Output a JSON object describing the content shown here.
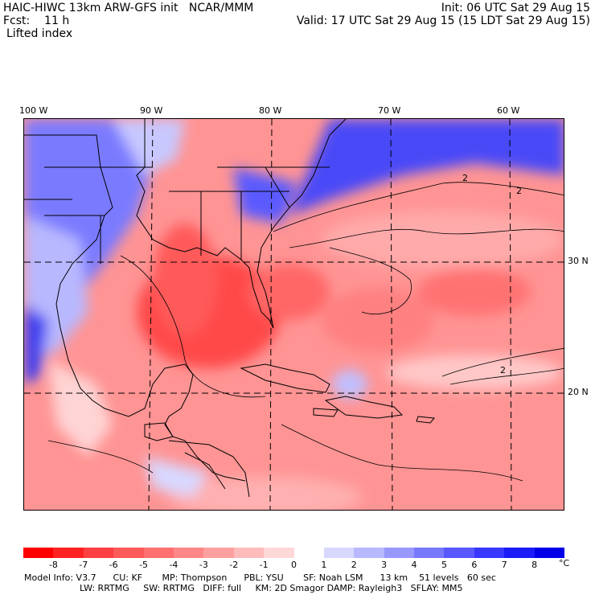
{
  "header": {
    "model_line": "HAIC-HIWC 13km ARW-GFS init   NCAR/MMM",
    "forecast_line": "Fcst:    11 h",
    "field_name": "Lifted index",
    "init_line": "Init: 06 UTC Sat 29 Aug 15",
    "valid_line": "Valid: 17 UTC Sat 29 Aug 15 (15 LDT Sat 29 Aug 15)"
  },
  "map": {
    "lon_labels": [
      "100 W",
      "90 W",
      "80 W",
      "70 W",
      "60 W"
    ],
    "lat_labels": [
      "30 N",
      "20 N"
    ],
    "contour_label": "2"
  },
  "colorbar": {
    "ticks": [
      "-8",
      "-7",
      "-6",
      "-5",
      "-4",
      "-3",
      "-2",
      "-1",
      "0",
      "1",
      "2",
      "3",
      "4",
      "5",
      "6",
      "7",
      "8"
    ],
    "unit": "°C",
    "colors": [
      "#ff0000",
      "#ff2222",
      "#ff4040",
      "#ff5a5a",
      "#ff7070",
      "#ff8787",
      "#ffa0a0",
      "#ffbcbc",
      "#ffd8d8",
      "#ffffff",
      "#d8d8ff",
      "#b8b8ff",
      "#9898ff",
      "#7878ff",
      "#5858ff",
      "#3838ff",
      "#1c1cf8",
      "#0000e8"
    ]
  },
  "model_info": {
    "line1": "Model Info: V3.7      CU: KF       MP: Thompson      PBL: YSU       SF: Noah LSM      13 km    51 levels   60 sec",
    "line2": "LW: RRTMG     SW: RRTMG   DIFF: full     KM: 2D Smagor DAMP: Rayleigh3   SFLAY: MM5"
  }
}
